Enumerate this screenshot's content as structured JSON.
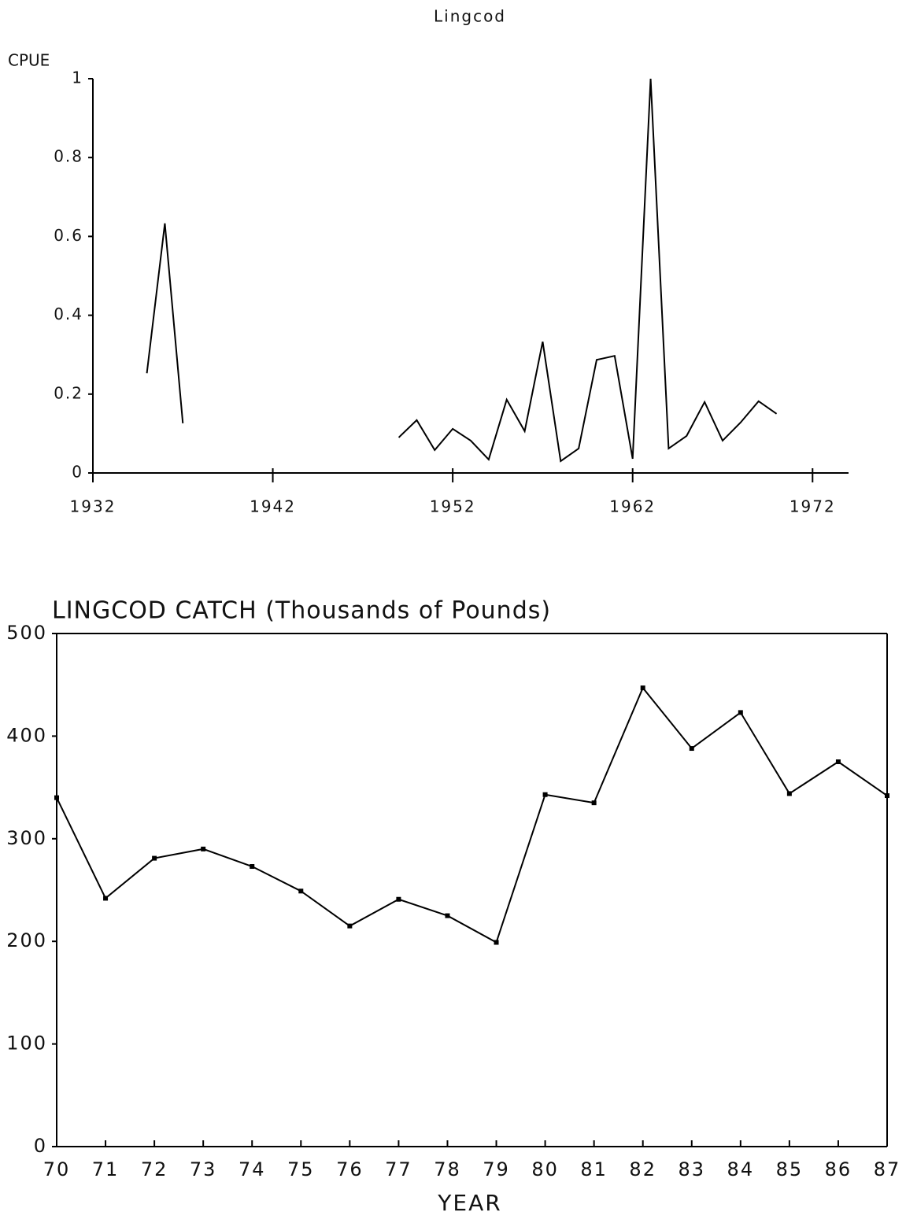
{
  "chart_data": [
    {
      "type": "line",
      "title": "Lingcod",
      "ylabel": "CPUE",
      "x": [
        1935,
        1936,
        1937,
        1938,
        1939,
        1940,
        1941,
        1942,
        1943,
        1944,
        1945,
        1946,
        1947,
        1948,
        1949,
        1950,
        1951,
        1952,
        1953,
        1954,
        1955,
        1956,
        1957,
        1958,
        1959,
        1960,
        1961,
        1962,
        1963,
        1964,
        1965,
        1966,
        1967,
        1968,
        1969,
        1970
      ],
      "series": [
        {
          "color": "#000000",
          "values": [
            0.253,
            0.633,
            0.126,
            null,
            null,
            null,
            null,
            null,
            null,
            null,
            null,
            null,
            null,
            null,
            0.09,
            0.134,
            0.058,
            0.112,
            0.082,
            0.034,
            0.186,
            0.106,
            0.333,
            0.03,
            0.062,
            0.287,
            0.297,
            0.036,
            1.0,
            0.062,
            0.094,
            0.18,
            0.082,
            0.128,
            0.182,
            0.15
          ]
        }
      ],
      "xlim": [
        1932,
        1974
      ],
      "xticks": [
        1932,
        1942,
        1952,
        1962,
        1972
      ],
      "ylim": [
        0,
        1
      ],
      "yticks": [
        0,
        0.2,
        0.4,
        0.6,
        0.8,
        1
      ],
      "grid": false
    },
    {
      "type": "line",
      "title": "LINGCOD CATCH (Thousands of Pounds)",
      "xlabel": "YEAR",
      "categories": [
        "70",
        "71",
        "72",
        "73",
        "74",
        "75",
        "76",
        "77",
        "78",
        "79",
        "80",
        "81",
        "82",
        "83",
        "84",
        "85",
        "86",
        "87"
      ],
      "series": [
        {
          "color": "#000000",
          "values": [
            340,
            242,
            281,
            290,
            273,
            249,
            215,
            241,
            225,
            199,
            343,
            335,
            447,
            388,
            423,
            344,
            375,
            342
          ]
        }
      ],
      "ylim": [
        0,
        500
      ],
      "yticks": [
        0,
        100,
        200,
        300,
        400,
        500
      ],
      "grid": false
    }
  ]
}
